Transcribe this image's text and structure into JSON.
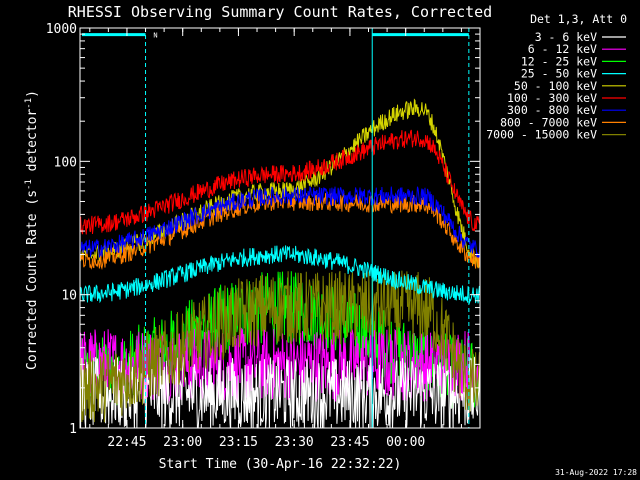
{
  "chart_data": {
    "type": "line",
    "title": "RHESSI Observing Summary Count Rates, Corrected",
    "xlabel": "Start Time (30-Apr-16 22:32:22)",
    "ylabel": "Corrected Count Rate (s",
    "ylabel_sup1": "-1",
    "ylabel_mid": " detector",
    "ylabel_sup2": "-1",
    "ylabel_end": ")",
    "y_scale": "log",
    "ylim": [
      1,
      1000
    ],
    "xlim": [
      "22:32:22",
      "00:20:00"
    ],
    "x_ticks": [
      "22:45",
      "23:00",
      "23:15",
      "23:30",
      "23:45",
      "00:00"
    ],
    "y_ticks": [
      "1",
      "10",
      "100",
      "1000"
    ],
    "legend_header": "Det 1,3, Att 0",
    "legend_placement": "right",
    "timestamp": "31-Aug-2022 17:28",
    "flag_label": "N",
    "night_intervals": [
      [
        "22:32:22",
        "22:50:00"
      ],
      [
        "23:51:00",
        "00:17:00"
      ]
    ],
    "series": [
      {
        "name": "3 - 6 keV",
        "color": "#ffffff",
        "trend": [
          [
            0,
            1.8
          ],
          [
            4,
            1.8
          ]
        ]
      },
      {
        "name": "6 - 12 keV",
        "color": "#ff00ff",
        "trend": [
          [
            0,
            3
          ],
          [
            4,
            3
          ]
        ]
      },
      {
        "name": "12 - 25 keV",
        "color": "#00ff00",
        "trend": [
          [
            0,
            2.5
          ],
          [
            2,
            8
          ],
          [
            4,
            2.5
          ]
        ]
      },
      {
        "name": "25 - 50 keV",
        "color": "#00ffff",
        "trend": [
          [
            0,
            10
          ],
          [
            2,
            20
          ],
          [
            4,
            10
          ]
        ]
      },
      {
        "name": "50 - 100 keV",
        "color": "#d4d400",
        "trend": [
          [
            0,
            20
          ],
          [
            2,
            60
          ],
          [
            3.4,
            250
          ],
          [
            4,
            18
          ]
        ]
      },
      {
        "name": "100 - 300 keV",
        "color": "#ff0000",
        "trend": [
          [
            0,
            33
          ],
          [
            2,
            80
          ],
          [
            3.4,
            150
          ],
          [
            4,
            33
          ]
        ]
      },
      {
        "name": "300 - 800 keV",
        "color": "#0000ff",
        "trend": [
          [
            0,
            22
          ],
          [
            2,
            55
          ],
          [
            3.4,
            55
          ],
          [
            4,
            22
          ]
        ]
      },
      {
        "name": "800 - 7000 keV",
        "color": "#ff8000",
        "trend": [
          [
            0,
            18
          ],
          [
            2,
            50
          ],
          [
            3.4,
            48
          ],
          [
            4,
            18
          ]
        ]
      },
      {
        "name": "7000 - 15000 keV",
        "color": "#808000",
        "trend": [
          [
            0,
            2
          ],
          [
            2,
            8
          ],
          [
            3.4,
            8
          ],
          [
            4,
            2
          ]
        ]
      }
    ]
  }
}
